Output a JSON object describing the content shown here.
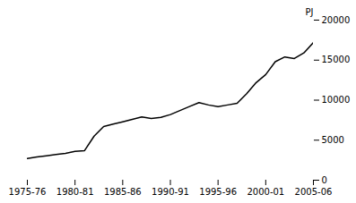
{
  "chart_data": {
    "type": "line",
    "title": "",
    "ylabel": "PJ",
    "x": [
      0,
      1,
      2,
      3,
      4,
      5,
      6,
      7,
      8,
      9,
      10,
      11,
      12,
      13,
      14,
      15,
      16,
      17,
      18,
      19,
      20,
      21,
      22,
      23,
      24,
      25,
      26,
      27,
      28,
      29,
      30
    ],
    "values": [
      2700,
      2900,
      3050,
      3200,
      3350,
      3600,
      3700,
      5500,
      6700,
      7000,
      7300,
      7600,
      7900,
      7700,
      7850,
      8200,
      8700,
      9200,
      9700,
      9400,
      9200,
      9400,
      9600,
      10800,
      12200,
      13200,
      14800,
      15400,
      15200,
      15900,
      17200
    ],
    "color": "#000000",
    "xlim": [
      0,
      30
    ],
    "xticks": [
      {
        "value": 0,
        "label": "1975-76"
      },
      {
        "value": 5,
        "label": "1980-81"
      },
      {
        "value": 10,
        "label": "1985-86"
      },
      {
        "value": 15,
        "label": "1990-91"
      },
      {
        "value": 20,
        "label": "1995-96"
      },
      {
        "value": 25,
        "label": "2000-01"
      },
      {
        "value": 30,
        "label": "2005-06"
      }
    ],
    "ylim": [
      0,
      20000
    ],
    "yticks": [
      0,
      5000,
      10000,
      15000,
      20000
    ],
    "grid": false
  }
}
